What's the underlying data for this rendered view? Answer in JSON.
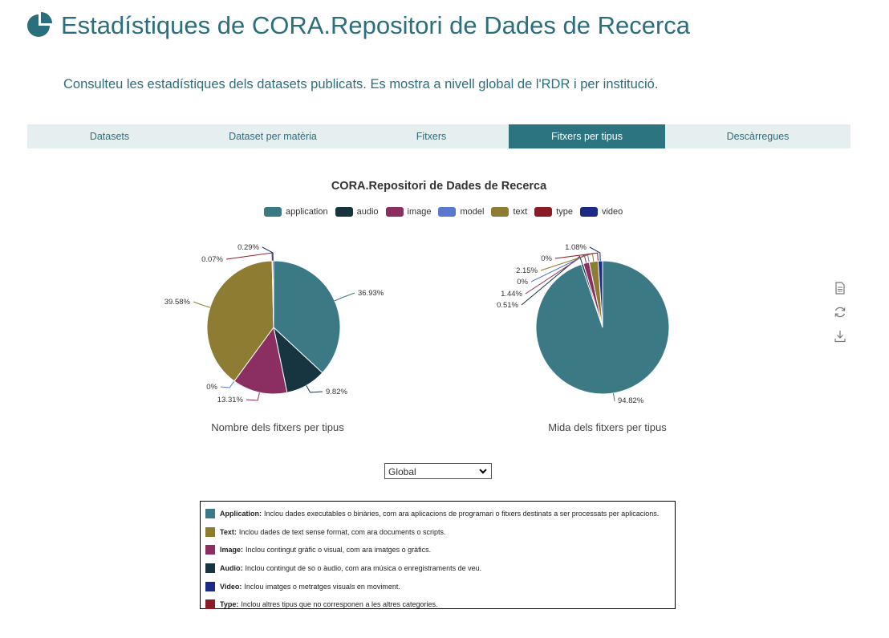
{
  "header": {
    "title": "Estadístiques de CORA.Repositori de Dades de Recerca",
    "subtitle": "Consulteu les estadístiques dels datasets publicats. Es mostra a nivell global de l'RDR i per institució.",
    "logo_icon": "pie-chart-icon"
  },
  "tabs": [
    {
      "label": "Datasets",
      "active": false
    },
    {
      "label": "Dataset per matèria",
      "active": false
    },
    {
      "label": "Fitxers",
      "active": false
    },
    {
      "label": "Fitxers per tipus",
      "active": true
    },
    {
      "label": "Descàrregues",
      "active": false
    }
  ],
  "colors": {
    "application": "#3b7a85",
    "audio": "#173540",
    "image": "#8b2f62",
    "model": "#5b78cf",
    "text": "#8d7c31",
    "type": "#8a1c28",
    "video": "#1b2a85",
    "accent": "#2b6e7d"
  },
  "chart_data": [
    {
      "type": "pie",
      "title": "CORA.Repositori de Dades de Recerca",
      "subtitle": "Nombre dels fitxers per tipus",
      "legend": [
        "application",
        "audio",
        "image",
        "model",
        "text",
        "type",
        "video"
      ],
      "legend_position": "top",
      "slices": [
        {
          "name": "application",
          "value": 36.93,
          "label": "36.93%"
        },
        {
          "name": "audio",
          "value": 9.82,
          "label": "9.82%"
        },
        {
          "name": "image",
          "value": 13.31,
          "label": "13.31%"
        },
        {
          "name": "model",
          "value": 0,
          "label": "0%"
        },
        {
          "name": "text",
          "value": 39.58,
          "label": "39.58%"
        },
        {
          "name": "type",
          "value": 0.07,
          "label": "0.07%"
        },
        {
          "name": "video",
          "value": 0.29,
          "label": "0.29%"
        }
      ]
    },
    {
      "type": "pie",
      "title": "CORA.Repositori de Dades de Recerca",
      "subtitle": "Mida dels fitxers per tipus",
      "legend": [
        "application",
        "audio",
        "image",
        "model",
        "text",
        "type",
        "video"
      ],
      "legend_position": "top",
      "slices": [
        {
          "name": "application",
          "value": 94.82,
          "label": "94.82%"
        },
        {
          "name": "audio",
          "value": 0.51,
          "label": "0.51%"
        },
        {
          "name": "image",
          "value": 1.44,
          "label": "1.44%"
        },
        {
          "name": "model",
          "value": 0,
          "label": "0%"
        },
        {
          "name": "text",
          "value": 2.15,
          "label": "2.15%"
        },
        {
          "name": "type",
          "value": 0,
          "label": "0%"
        },
        {
          "name": "video",
          "value": 1.08,
          "label": "1.08%"
        }
      ]
    }
  ],
  "toolbox": [
    {
      "name": "data-view-icon"
    },
    {
      "name": "restore-icon"
    },
    {
      "name": "save-image-icon"
    }
  ],
  "selector": {
    "value": "Global"
  },
  "descriptions": [
    {
      "key": "application",
      "label": "Application:",
      "text": "Inclou dades executables o binàries, com ara aplicacions de programari o fitxers destinats a ser processats per aplicacions."
    },
    {
      "key": "text",
      "label": "Text:",
      "text": "Inclou dades de text sense format, com ara documents o scripts."
    },
    {
      "key": "image",
      "label": "Image:",
      "text": "Inclou contingut gràfic o visual, com ara imatges o gràfics."
    },
    {
      "key": "audio",
      "label": "Audio:",
      "text": "Inclou contingut de so o àudio, com ara música o enregistraments de veu."
    },
    {
      "key": "video",
      "label": "Video:",
      "text": "Inclou imatges o metratges visuals en moviment."
    },
    {
      "key": "type",
      "label": "Type:",
      "text": "Inclou altres tipus que no corresponen a les altres categories."
    }
  ]
}
